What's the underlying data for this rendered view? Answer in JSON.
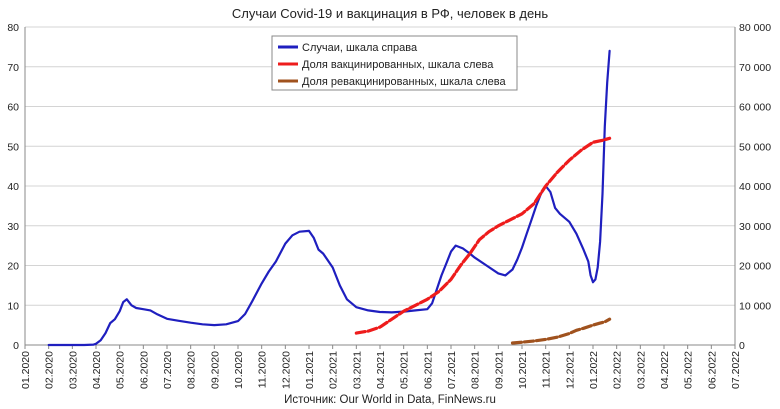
{
  "chart_data": {
    "type": "line",
    "title": "Случаи Covid-19 и вакцинация в РФ, человек в день",
    "source": "Источник: Our World in Data, FinNews.ru",
    "x_labels": [
      "01.2020",
      "02.2020",
      "03.2020",
      "04.2020",
      "05.2020",
      "06.2020",
      "07.2020",
      "08.2020",
      "09.2020",
      "10.2020",
      "11.2020",
      "12.2020",
      "01.2021",
      "02.2021",
      "03.2021",
      "04.2021",
      "05.2021",
      "06.2021",
      "07.2021",
      "08.2021",
      "09.2021",
      "10.2021",
      "11.2021",
      "12.2021",
      "01.2022",
      "02.2022",
      "03.2022",
      "04.2022",
      "05.2022",
      "06.2022",
      "07.2022"
    ],
    "left_axis": {
      "min": 0,
      "max": 80,
      "step": 10,
      "labels": [
        "0",
        "10",
        "20",
        "30",
        "40",
        "50",
        "60",
        "70",
        "80"
      ]
    },
    "right_axis": {
      "min": 0,
      "max": 80000,
      "step": 10000,
      "labels": [
        "0",
        "10 000",
        "20 000",
        "30 000",
        "40 000",
        "50 000",
        "60 000",
        "70 000",
        "80 000"
      ]
    },
    "grid": "horizontal",
    "legend": {
      "position": "top-center",
      "items": [
        {
          "label": "Случаи, шкала справа",
          "color": "#1f1fbf"
        },
        {
          "label": "Доля вакцинированных, шкала слева",
          "color": "#ee1c1c"
        },
        {
          "label": "Доля ревакцинированных, шкала слева",
          "color": "#a0521e"
        }
      ]
    },
    "series": [
      {
        "name": "Случаи, шкала справа",
        "axis": "right",
        "color": "#1f1fbf",
        "style": "solid",
        "points": [
          [
            1.0,
            0
          ],
          [
            1.5,
            0
          ],
          [
            2.0,
            0
          ],
          [
            2.5,
            0
          ],
          [
            2.9,
            100
          ],
          [
            3.0,
            300
          ],
          [
            3.2,
            1200
          ],
          [
            3.4,
            3000
          ],
          [
            3.6,
            5500
          ],
          [
            3.8,
            6500
          ],
          [
            4.0,
            8500
          ],
          [
            4.15,
            10800
          ],
          [
            4.3,
            11500
          ],
          [
            4.5,
            10000
          ],
          [
            4.7,
            9300
          ],
          [
            5.0,
            9000
          ],
          [
            5.3,
            8700
          ],
          [
            5.6,
            7700
          ],
          [
            6.0,
            6600
          ],
          [
            6.5,
            6100
          ],
          [
            7.0,
            5600
          ],
          [
            7.5,
            5200
          ],
          [
            8.0,
            5000
          ],
          [
            8.5,
            5200
          ],
          [
            9.0,
            6000
          ],
          [
            9.3,
            7800
          ],
          [
            9.6,
            11000
          ],
          [
            10.0,
            15500
          ],
          [
            10.3,
            18500
          ],
          [
            10.6,
            21000
          ],
          [
            11.0,
            25500
          ],
          [
            11.3,
            27600
          ],
          [
            11.6,
            28500
          ],
          [
            12.0,
            28700
          ],
          [
            12.2,
            27000
          ],
          [
            12.4,
            24000
          ],
          [
            12.6,
            23000
          ],
          [
            13.0,
            19500
          ],
          [
            13.3,
            15000
          ],
          [
            13.6,
            11500
          ],
          [
            14.0,
            9500
          ],
          [
            14.5,
            8700
          ],
          [
            15.0,
            8300
          ],
          [
            15.5,
            8200
          ],
          [
            16.0,
            8400
          ],
          [
            16.5,
            8700
          ],
          [
            17.0,
            9000
          ],
          [
            17.2,
            10500
          ],
          [
            17.4,
            14000
          ],
          [
            17.6,
            17500
          ],
          [
            17.8,
            20500
          ],
          [
            18.0,
            23500
          ],
          [
            18.2,
            25000
          ],
          [
            18.5,
            24300
          ],
          [
            18.8,
            23000
          ],
          [
            19.0,
            22000
          ],
          [
            19.5,
            20000
          ],
          [
            20.0,
            18000
          ],
          [
            20.3,
            17500
          ],
          [
            20.6,
            19000
          ],
          [
            20.8,
            21500
          ],
          [
            21.0,
            24500
          ],
          [
            21.2,
            28000
          ],
          [
            21.4,
            31500
          ],
          [
            21.6,
            35000
          ],
          [
            21.8,
            38000
          ],
          [
            22.0,
            40000
          ],
          [
            22.2,
            38500
          ],
          [
            22.4,
            34500
          ],
          [
            22.6,
            33000
          ],
          [
            23.0,
            31000
          ],
          [
            23.3,
            28000
          ],
          [
            23.6,
            24000
          ],
          [
            23.8,
            21000
          ],
          [
            23.9,
            17500
          ],
          [
            24.0,
            15800
          ],
          [
            24.1,
            16500
          ],
          [
            24.2,
            19500
          ],
          [
            24.3,
            26000
          ],
          [
            24.4,
            38000
          ],
          [
            24.5,
            55000
          ],
          [
            24.6,
            66000
          ],
          [
            24.7,
            74000
          ]
        ]
      },
      {
        "name": "Доля вакцинированных, шкала слева",
        "axis": "left",
        "color": "#ee1c1c",
        "style": "dashed",
        "points": [
          [
            14.0,
            3.0
          ],
          [
            14.5,
            3.5
          ],
          [
            15.0,
            4.5
          ],
          [
            15.5,
            6.5
          ],
          [
            16.0,
            8.5
          ],
          [
            16.5,
            10.0
          ],
          [
            17.0,
            11.5
          ],
          [
            17.5,
            13.5
          ],
          [
            18.0,
            16.5
          ],
          [
            18.4,
            20.0
          ],
          [
            18.8,
            23.0
          ],
          [
            19.2,
            26.5
          ],
          [
            19.6,
            28.5
          ],
          [
            20.0,
            30.0
          ],
          [
            20.5,
            31.5
          ],
          [
            21.0,
            33.0
          ],
          [
            21.5,
            35.5
          ],
          [
            22.0,
            40.0
          ],
          [
            22.5,
            43.5
          ],
          [
            23.0,
            46.5
          ],
          [
            23.5,
            49.0
          ],
          [
            24.0,
            51.0
          ],
          [
            24.4,
            51.5
          ],
          [
            24.7,
            52.0
          ]
        ]
      },
      {
        "name": "Доля ревакцинированных, шкала слева",
        "axis": "left",
        "color": "#a0521e",
        "style": "dashed",
        "points": [
          [
            20.6,
            0.5
          ],
          [
            21.0,
            0.7
          ],
          [
            21.5,
            1.0
          ],
          [
            22.0,
            1.4
          ],
          [
            22.5,
            2.0
          ],
          [
            23.0,
            2.9
          ],
          [
            23.3,
            3.7
          ],
          [
            23.6,
            4.2
          ],
          [
            24.0,
            5.0
          ],
          [
            24.3,
            5.5
          ],
          [
            24.5,
            5.8
          ],
          [
            24.7,
            6.5
          ]
        ]
      }
    ]
  }
}
